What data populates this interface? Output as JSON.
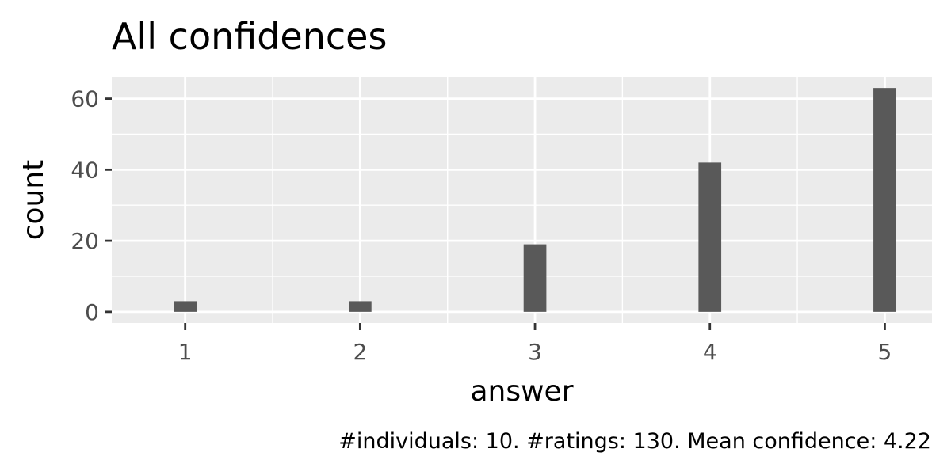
{
  "colors": {
    "panel_background": "#ebebeb",
    "grid_line": "#ffffff",
    "bar_fill": "#595959",
    "tick_mark": "#333333",
    "tick_text": "#4d4d4d",
    "text": "#000000"
  },
  "chart_data": {
    "type": "bar",
    "title": "All confidences",
    "xlabel": "answer",
    "ylabel": "count",
    "caption": "#individuals: 10. #ratings: 130. Mean confidence: 4.22",
    "x": [
      1,
      2,
      3,
      4,
      5
    ],
    "values": [
      3,
      3,
      19,
      42,
      63
    ],
    "x_tick_labels": [
      "1",
      "2",
      "3",
      "4",
      "5"
    ],
    "y_ticks": [
      0,
      20,
      40,
      60
    ],
    "y_tick_labels": [
      "0",
      "20",
      "40",
      "60"
    ],
    "xlim": [
      0.58,
      5.27
    ],
    "ylim": [
      -3.15,
      66.15
    ],
    "bar_width": 0.13,
    "grid": true,
    "legend": "none"
  }
}
